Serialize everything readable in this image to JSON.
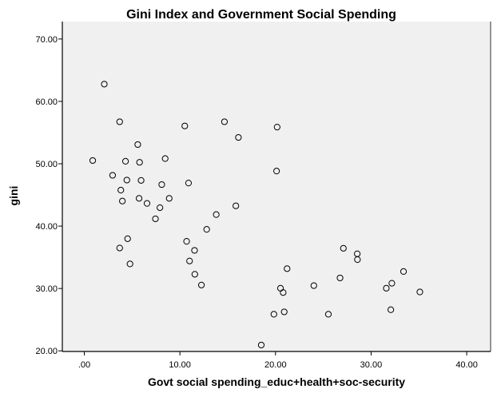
{
  "chart_data": {
    "type": "scatter",
    "title": "Gini Index and Government Social Spending",
    "xlabel": "Govt social spending_educ+health+soc-security",
    "ylabel": "gini",
    "xlim": [
      -2.3,
      42.5
    ],
    "ylim": [
      19.9,
      72.8
    ],
    "xticks": [
      0,
      10,
      20,
      30,
      40
    ],
    "xtick_labels": [
      ".00",
      "10.00",
      "20.00",
      "30.00",
      "40.00"
    ],
    "yticks": [
      20,
      30,
      40,
      50,
      60,
      70
    ],
    "ytick_labels": [
      "20.00",
      "30.00",
      "40.00",
      "50.00",
      "60.00",
      "70.00"
    ],
    "grid": false,
    "background": "#f0f0f0",
    "marker": "hollow-circle",
    "points": [
      [
        2.09,
        62.77
      ],
      [
        3.7,
        56.73
      ],
      [
        10.51,
        56.06
      ],
      [
        14.66,
        56.73
      ],
      [
        16.12,
        54.22
      ],
      [
        5.59,
        53.08
      ],
      [
        0.88,
        50.52
      ],
      [
        4.31,
        50.4
      ],
      [
        5.78,
        50.23
      ],
      [
        8.46,
        50.83
      ],
      [
        2.96,
        48.15
      ],
      [
        4.45,
        47.38
      ],
      [
        5.94,
        47.33
      ],
      [
        8.1,
        46.66
      ],
      [
        10.9,
        46.91
      ],
      [
        3.82,
        45.77
      ],
      [
        3.98,
        44.02
      ],
      [
        5.73,
        44.45
      ],
      [
        6.56,
        43.64
      ],
      [
        8.88,
        44.45
      ],
      [
        7.91,
        42.96
      ],
      [
        7.44,
        41.17
      ],
      [
        13.8,
        41.85
      ],
      [
        15.85,
        43.25
      ],
      [
        12.8,
        39.48
      ],
      [
        4.53,
        37.98
      ],
      [
        3.7,
        36.49
      ],
      [
        4.78,
        33.94
      ],
      [
        10.7,
        37.56
      ],
      [
        11.53,
        36.11
      ],
      [
        11.01,
        34.41
      ],
      [
        11.56,
        32.28
      ],
      [
        12.25,
        30.55
      ],
      [
        20.17,
        55.88
      ],
      [
        20.11,
        48.83
      ],
      [
        27.1,
        36.45
      ],
      [
        28.55,
        35.56
      ],
      [
        28.57,
        34.63
      ],
      [
        21.21,
        33.18
      ],
      [
        26.75,
        31.69
      ],
      [
        33.39,
        32.72
      ],
      [
        20.52,
        30.04
      ],
      [
        20.8,
        29.35
      ],
      [
        24.01,
        30.46
      ],
      [
        31.59,
        30.04
      ],
      [
        32.17,
        30.84
      ],
      [
        35.1,
        29.44
      ],
      [
        19.83,
        25.87
      ],
      [
        20.91,
        26.25
      ],
      [
        25.53,
        25.87
      ],
      [
        32.06,
        26.59
      ],
      [
        18.51,
        20.93
      ]
    ]
  }
}
